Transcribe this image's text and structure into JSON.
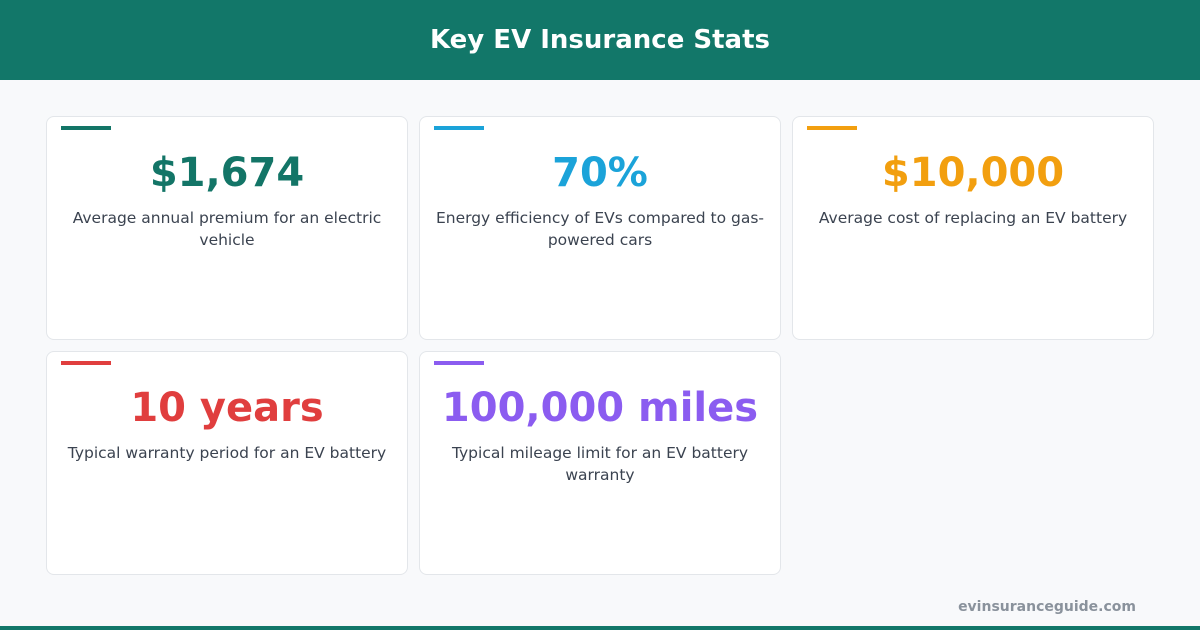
{
  "header": {
    "title": "Key EV Insurance Stats"
  },
  "cards": [
    {
      "value": "$1,674",
      "description": "Average annual premium for an electric vehicle",
      "color": "#137567"
    },
    {
      "value": "70%",
      "description": "Energy efficiency of EVs compared to gas-powered cars",
      "color": "#1ba3d9"
    },
    {
      "value": "$10,000",
      "description": "Average cost of replacing an EV battery",
      "color": "#f29f0f"
    },
    {
      "value": "10 years",
      "description": "Typical warranty period for an EV battery",
      "color": "#e03e3e"
    },
    {
      "value": "100,000 miles",
      "description": "Typical mileage limit for an EV battery warranty",
      "color": "#8b5cf0"
    }
  ],
  "footer": {
    "source": "evinsuranceguide.com"
  }
}
